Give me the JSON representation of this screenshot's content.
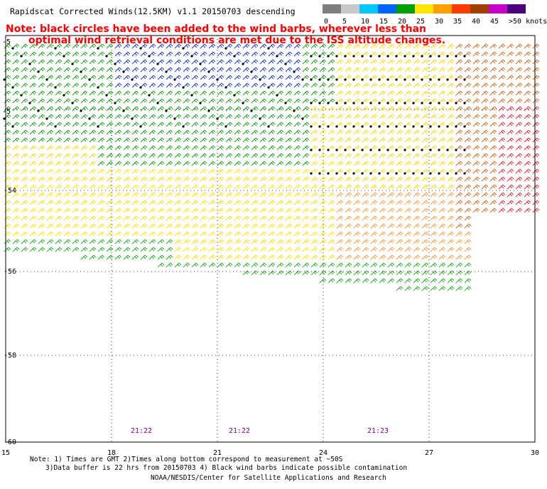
{
  "title": "Rapidscat Corrected Winds(12.5KM) v1.1 20150703 descending",
  "note": {
    "line1": "Note: black circles have been added to the wind barbs, wherever less than",
    "line2": "optimal wind retrieval conditions are met due to the ISS altitude changes.",
    "color": "#ff0000"
  },
  "legend": {
    "unit": "knots",
    "labels": [
      "0",
      "5",
      "10",
      "15",
      "20",
      "25",
      "30",
      "35",
      "40",
      "45",
      ">50 knots"
    ],
    "colors": [
      "#7f7f7f",
      "#c8c8c8",
      "#00c8ff",
      "#0064ff",
      "#00a000",
      "#ffe600",
      "#ffa000",
      "#ff3c00",
      "#a04000",
      "#c800c8",
      "#4b0082"
    ]
  },
  "map": {
    "lon_ticks": [
      "15",
      "18",
      "21",
      "24",
      "27",
      "30"
    ],
    "lat_ticks": [
      "-54",
      "-56",
      "-58",
      "-60"
    ],
    "partial_lat_labels": [
      "-5",
      "-5"
    ],
    "times": [
      "21:22",
      "21:22",
      "21:23"
    ],
    "times_color": "#800080"
  },
  "footer": {
    "line1": "Note: 1) Times are GMT 2)Times along bottom correspond to measurement at ~50S",
    "line2": "3)Data buffer is 22 hrs from 20150703 4) Black wind barbs indicate possible contamination",
    "line3": "NOAA/NESDIS/Center for Satellite Applications and Research"
  }
}
